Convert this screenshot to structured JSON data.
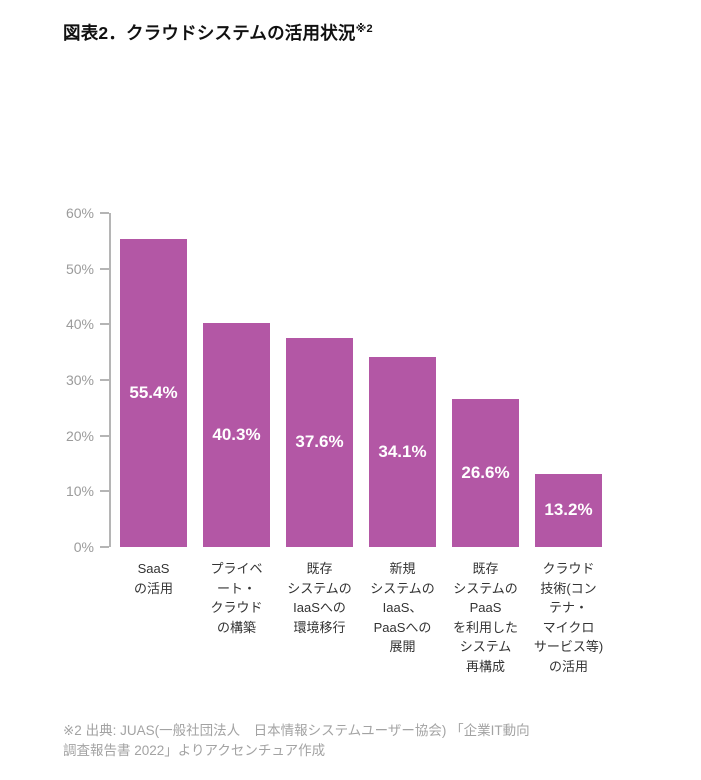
{
  "title": {
    "text": "図表2．クラウドシステムの活用状況",
    "superscript": "※2"
  },
  "chart_data": {
    "type": "bar",
    "title": "クラウドシステムの活用状況",
    "categories": [
      "SaaS\nの活用",
      "プライベ\nート・\nクラウド\nの構築",
      "既存\nシステムの\nIaaSへの\n環境移行",
      "新規\nシステムの\nIaaS、\nPaaSへの\n展開",
      "既存\nシステムの\nPaaS\nを利用した\nシステム\n再構成",
      "クラウド\n技術(コン\nテナ・\nマイクロ\nサービス等)\nの活用"
    ],
    "values": [
      55.4,
      40.3,
      37.6,
      34.1,
      26.6,
      13.2
    ],
    "value_labels": [
      "55.4%",
      "40.3%",
      "37.6%",
      "34.1%",
      "26.6%",
      "13.2%"
    ],
    "xlabel": "",
    "ylabel": "",
    "ylim": [
      0,
      60
    ],
    "ytick_values": [
      0,
      10,
      20,
      30,
      40,
      50,
      60
    ],
    "ytick_labels": [
      "0%",
      "10%",
      "20%",
      "30%",
      "40%",
      "50%",
      "60%"
    ],
    "grid": false,
    "legend": "none",
    "bar_color": "#b357a5"
  },
  "footnote": {
    "text": "※2 出典: JUAS(一般社団法人　日本情報システムユーザー協会) 「企業IT動向\n調査報告書 2022」よりアクセンチュア作成"
  },
  "colors": {
    "bar": "#b357a5",
    "axis": "#b5b5b5",
    "tick_label": "#9b9b9b",
    "category_label": "#333333",
    "value_label": "#ffffff",
    "title": "#111111",
    "footnote": "#a3a3a3",
    "background": "#ffffff"
  }
}
